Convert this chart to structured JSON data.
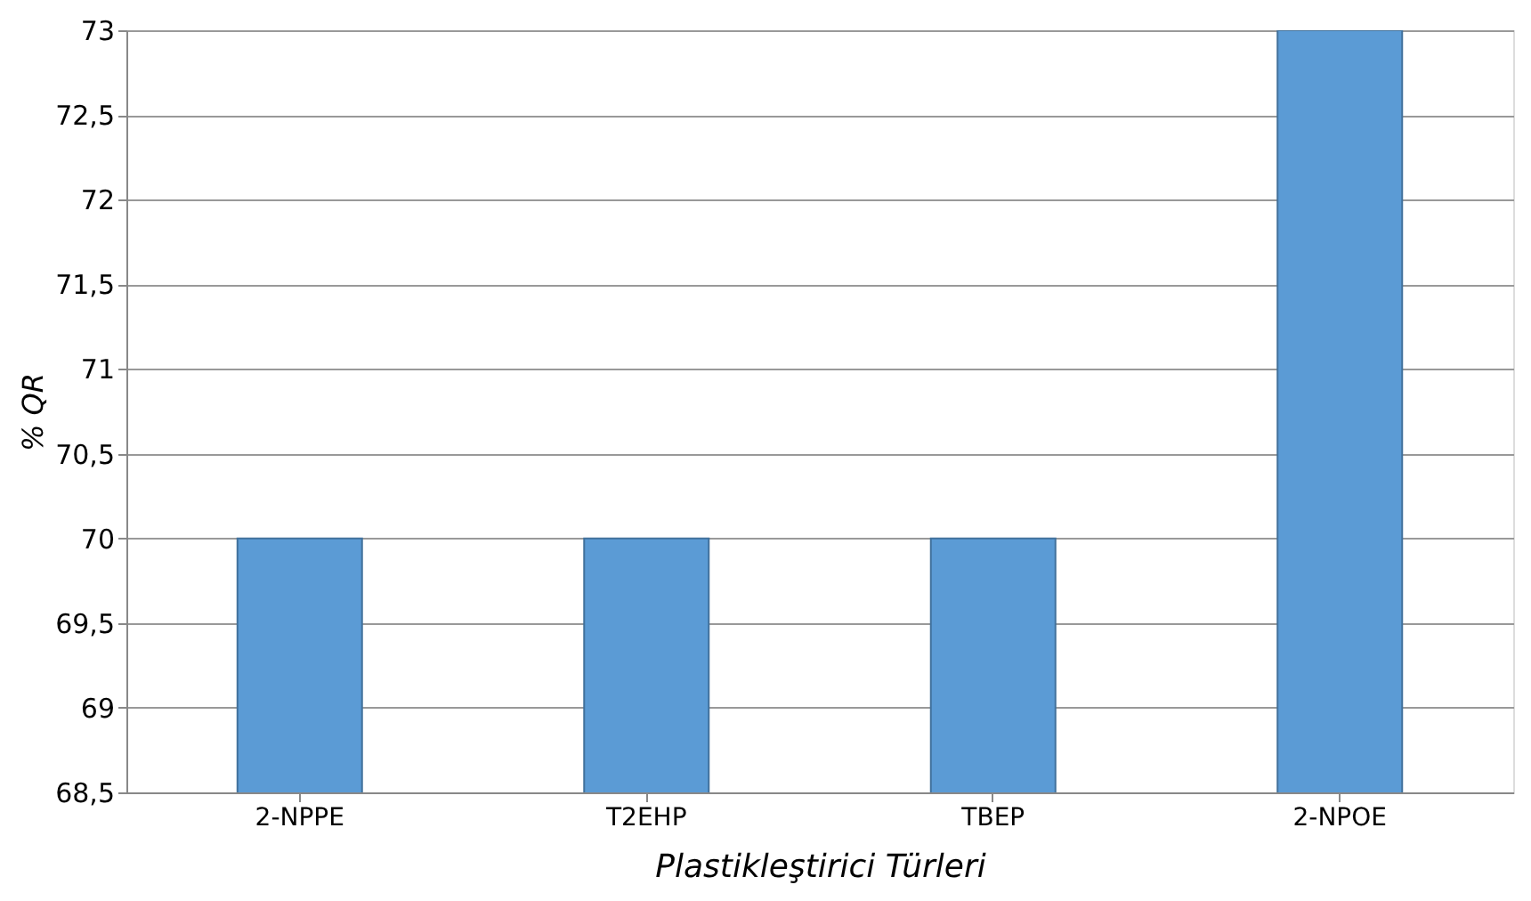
{
  "chart_data": {
    "type": "bar",
    "xlabel": "Plastikleştirici Türleri",
    "ylabel": "% QR",
    "categories": [
      "2-NPPE",
      "T2EHP",
      "TBEP",
      "2-NPOE"
    ],
    "values": [
      70,
      70,
      70,
      73
    ],
    "color": "#5b9bd5",
    "ylim": [
      68.5,
      73
    ],
    "yticks": [
      {
        "value": 68.5,
        "label": "68,5"
      },
      69,
      {
        "value": 69.5,
        "label": "69,5"
      },
      70,
      {
        "value": 70.5,
        "label": "70,5"
      },
      71,
      {
        "value": 71.5,
        "label": "71,5"
      },
      72,
      {
        "value": 72.5,
        "label": "72,5"
      },
      73
    ],
    "grid": "y"
  }
}
